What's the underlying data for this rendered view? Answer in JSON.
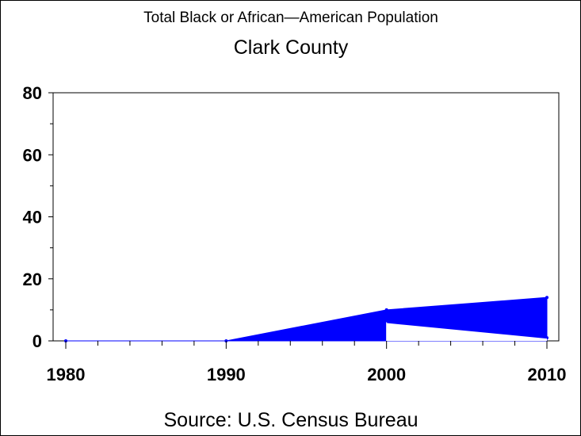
{
  "chart_data": {
    "type": "area",
    "title": "Total Black or African—American Population",
    "subtitle": "Clark County",
    "footnote": "Source: U.S. Census Bureau",
    "xlabel": "",
    "ylabel": "",
    "x_ticks": [
      "1980",
      "1990",
      "2000",
      "2010"
    ],
    "y_ticks": [
      "0",
      "20",
      "40",
      "60",
      "80"
    ],
    "xlim": [
      1980,
      2010
    ],
    "ylim": [
      0,
      80
    ],
    "grid": false,
    "series": [
      {
        "x": [
          1980,
          1990,
          2000,
          2010
        ],
        "values": [
          0,
          0,
          10,
          14
        ],
        "color": "#0000ff"
      },
      {
        "x": [
          2000,
          2010
        ],
        "values": [
          6,
          1
        ],
        "color": "#0000ff"
      }
    ]
  }
}
